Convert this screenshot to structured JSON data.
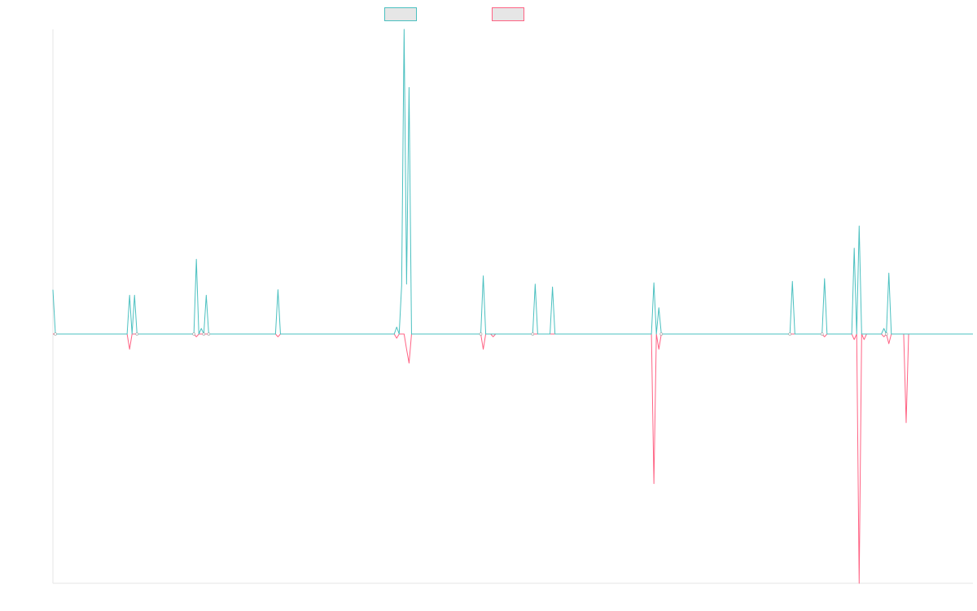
{
  "chart_data": {
    "type": "line",
    "title": "",
    "xlabel": "",
    "ylabel": "",
    "grid": false,
    "legend_position": "top-center",
    "ylim": [
      -0.9,
      1.1
    ],
    "series": [
      {
        "name": "",
        "color": "#4bc0c0",
        "points": [
          [
            0,
            0.16
          ],
          [
            1,
            0
          ],
          [
            30,
            0
          ],
          [
            31,
            0.14
          ],
          [
            32,
            0
          ],
          [
            33,
            0.14
          ],
          [
            34,
            0
          ],
          [
            57,
            0
          ],
          [
            58,
            0.27
          ],
          [
            59,
            0
          ],
          [
            60,
            0.02
          ],
          [
            61,
            0
          ],
          [
            62,
            0.14
          ],
          [
            63,
            0
          ],
          [
            90,
            0
          ],
          [
            91,
            0.16
          ],
          [
            92,
            0
          ],
          [
            138,
            0
          ],
          [
            139,
            0.025
          ],
          [
            140,
            0
          ],
          [
            141,
            0.175
          ],
          [
            142,
            1.1
          ],
          [
            143,
            0.18
          ],
          [
            144,
            0.89
          ],
          [
            145,
            0
          ],
          [
            173,
            0
          ],
          [
            174,
            0.21
          ],
          [
            175,
            0
          ],
          [
            194,
            0
          ],
          [
            195,
            0.18
          ],
          [
            196,
            0
          ],
          [
            201,
            0
          ],
          [
            202,
            0.17
          ],
          [
            203,
            0
          ],
          [
            242,
            0
          ],
          [
            243,
            0.185
          ],
          [
            244,
            0
          ],
          [
            245,
            0.095
          ],
          [
            246,
            0
          ],
          [
            298,
            0
          ],
          [
            299,
            0.19
          ],
          [
            300,
            0
          ],
          [
            311,
            0
          ],
          [
            312,
            0.2
          ],
          [
            313,
            0
          ],
          [
            323,
            0
          ],
          [
            324,
            0.31
          ],
          [
            325,
            0
          ],
          [
            326,
            0.39
          ],
          [
            327,
            0
          ],
          [
            335,
            0
          ],
          [
            336,
            0.02
          ],
          [
            337,
            0
          ],
          [
            338,
            0.22
          ],
          [
            339,
            0
          ],
          [
            372,
            0
          ]
        ]
      },
      {
        "name": "",
        "color": "#ff6384",
        "points": [
          [
            0,
            0
          ],
          [
            30,
            0
          ],
          [
            31,
            -0.055
          ],
          [
            32,
            0
          ],
          [
            57,
            0
          ],
          [
            58,
            -0.01
          ],
          [
            59,
            0
          ],
          [
            90,
            0
          ],
          [
            91,
            -0.01
          ],
          [
            92,
            0
          ],
          [
            138,
            0
          ],
          [
            139,
            -0.015
          ],
          [
            140,
            0
          ],
          [
            142,
            0
          ],
          [
            143,
            -0.055
          ],
          [
            144,
            -0.105
          ],
          [
            145,
            0
          ],
          [
            173,
            0
          ],
          [
            174,
            -0.055
          ],
          [
            175,
            0
          ],
          [
            177,
            0
          ],
          [
            178,
            -0.01
          ],
          [
            179,
            0
          ],
          [
            242,
            0
          ],
          [
            243,
            -0.54
          ],
          [
            244,
            0
          ],
          [
            245,
            -0.055
          ],
          [
            246,
            0
          ],
          [
            311,
            0
          ],
          [
            312,
            -0.01
          ],
          [
            313,
            0
          ],
          [
            323,
            0
          ],
          [
            324,
            -0.02
          ],
          [
            325,
            0
          ],
          [
            326,
            -0.9
          ],
          [
            327,
            0
          ],
          [
            328,
            -0.02
          ],
          [
            329,
            0
          ],
          [
            335,
            0
          ],
          [
            336,
            -0.01
          ],
          [
            337,
            0
          ],
          [
            338,
            -0.035
          ],
          [
            339,
            0
          ],
          [
            344,
            0
          ],
          [
            345,
            -0.32
          ],
          [
            346,
            0
          ],
          [
            372,
            0
          ]
        ]
      }
    ]
  }
}
